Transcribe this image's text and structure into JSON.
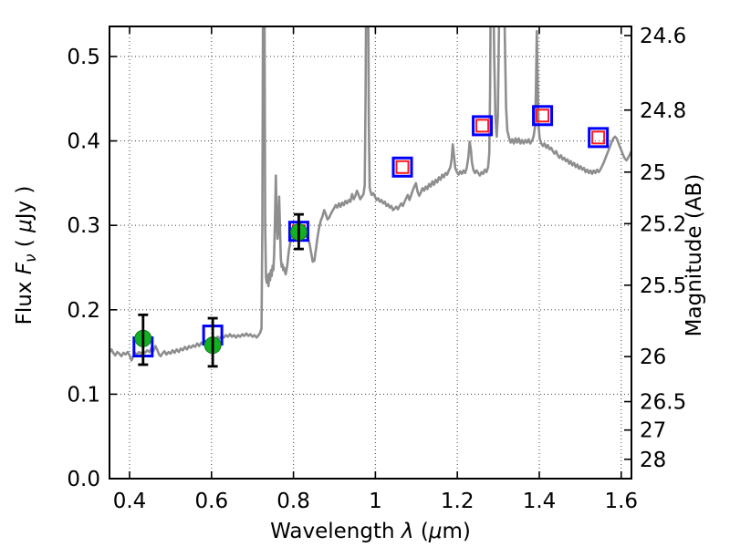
{
  "chart_data": {
    "type": "line+scatter",
    "title": "",
    "xlabel_parts": [
      {
        "t": "Wavelength  ",
        "i": false
      },
      {
        "t": "λ",
        "i": true
      },
      {
        "t": " (",
        "i": false
      },
      {
        "t": "μ",
        "i": true
      },
      {
        "t": "m)",
        "i": false
      }
    ],
    "ylabel_left_parts": [
      {
        "t": "Flux  ",
        "i": false
      },
      {
        "t": "F",
        "i": true
      },
      {
        "t": "ν",
        "i": true,
        "sub": true
      },
      {
        "t": "  ( ",
        "i": false
      },
      {
        "t": "μ",
        "i": true
      },
      {
        "t": "Jy )",
        "i": false
      }
    ],
    "ylabel_right_parts": [
      {
        "t": "Magnitude (AB)",
        "i": false
      }
    ],
    "axes": {
      "x": {
        "min": 0.351,
        "max": 1.625,
        "ticks": [
          0.4,
          0.6,
          0.8,
          1.0,
          1.2,
          1.4,
          1.6
        ],
        "tick_labels": [
          "0.4",
          "0.6",
          "0.8",
          "1",
          "1.2",
          "1.4",
          "1.6"
        ]
      },
      "y": {
        "min": 0.0,
        "max": 0.5356,
        "ticks": [
          0.0,
          0.1,
          0.2,
          0.3,
          0.4,
          0.5
        ],
        "tick_labels": [
          "0.0",
          "0.1",
          "0.2",
          "0.3",
          "0.4",
          "0.5"
        ]
      },
      "right": {
        "tick_values": [
          24.6,
          24.8,
          25.0,
          25.2,
          25.5,
          26.0,
          26.5,
          27.0,
          28.0
        ],
        "tick_labels": [
          "24.6",
          "24.8",
          "25",
          "25.2",
          "25.5",
          "26",
          "26.5",
          "27",
          "28"
        ],
        "ab_zeropoint": 23.9
      },
      "grid": {
        "style": "dotted",
        "on_x_ticks": true,
        "on_y_ticks": true
      }
    },
    "colors": {
      "spectrum": "#8e8e8e",
      "observed_marker": "#14b024",
      "observed_marker_edge": "#0a7d14",
      "model_square": "#0000ff",
      "model_inner_square": "#ff1a1a",
      "error_bar": "#000000",
      "grid": "#555555",
      "frame": "#000000"
    },
    "observed_photometry": [
      {
        "wavelength": 0.433,
        "flux": 0.166,
        "err_plus": 0.028,
        "err_minus": 0.031
      },
      {
        "wavelength": 0.603,
        "flux": 0.158,
        "err_plus": 0.032,
        "err_minus": 0.025
      },
      {
        "wavelength": 0.813,
        "flux": 0.292,
        "err_plus": 0.021,
        "err_minus": 0.02
      }
    ],
    "model_photometry": [
      {
        "wavelength": 0.433,
        "flux": 0.156,
        "red_inner": false
      },
      {
        "wavelength": 0.603,
        "flux": 0.17,
        "red_inner": false
      },
      {
        "wavelength": 0.813,
        "flux": 0.293,
        "red_inner": true
      },
      {
        "wavelength": 1.066,
        "flux": 0.369,
        "red_inner": true
      },
      {
        "wavelength": 1.261,
        "flux": 0.418,
        "red_inner": true
      },
      {
        "wavelength": 1.408,
        "flux": 0.43,
        "red_inner": true
      },
      {
        "wavelength": 1.544,
        "flux": 0.404,
        "red_inner": true
      }
    ],
    "spectrum": [
      [
        0.351,
        0.15
      ],
      [
        0.356,
        0.153
      ],
      [
        0.36,
        0.149
      ],
      [
        0.365,
        0.146
      ],
      [
        0.37,
        0.15
      ],
      [
        0.375,
        0.148
      ],
      [
        0.38,
        0.145
      ],
      [
        0.385,
        0.149
      ],
      [
        0.39,
        0.147
      ],
      [
        0.395,
        0.15
      ],
      [
        0.4,
        0.146
      ],
      [
        0.405,
        0.14
      ],
      [
        0.409,
        0.145
      ],
      [
        0.413,
        0.149
      ],
      [
        0.418,
        0.147
      ],
      [
        0.423,
        0.15
      ],
      [
        0.428,
        0.148
      ],
      [
        0.433,
        0.151
      ],
      [
        0.438,
        0.149
      ],
      [
        0.443,
        0.152
      ],
      [
        0.448,
        0.15
      ],
      [
        0.453,
        0.154
      ],
      [
        0.458,
        0.151
      ],
      [
        0.463,
        0.157
      ],
      [
        0.468,
        0.152
      ],
      [
        0.472,
        0.147
      ],
      [
        0.476,
        0.145
      ],
      [
        0.48,
        0.148
      ],
      [
        0.485,
        0.151
      ],
      [
        0.49,
        0.147
      ],
      [
        0.495,
        0.15
      ],
      [
        0.5,
        0.148
      ],
      [
        0.505,
        0.152
      ],
      [
        0.51,
        0.149
      ],
      [
        0.515,
        0.153
      ],
      [
        0.52,
        0.15
      ],
      [
        0.525,
        0.154
      ],
      [
        0.53,
        0.152
      ],
      [
        0.535,
        0.156
      ],
      [
        0.54,
        0.153
      ],
      [
        0.545,
        0.157
      ],
      [
        0.55,
        0.155
      ],
      [
        0.555,
        0.158
      ],
      [
        0.56,
        0.156
      ],
      [
        0.565,
        0.16
      ],
      [
        0.57,
        0.157
      ],
      [
        0.575,
        0.161
      ],
      [
        0.58,
        0.159
      ],
      [
        0.585,
        0.163
      ],
      [
        0.59,
        0.16
      ],
      [
        0.595,
        0.164
      ],
      [
        0.6,
        0.162
      ],
      [
        0.605,
        0.166
      ],
      [
        0.61,
        0.164
      ],
      [
        0.615,
        0.168
      ],
      [
        0.62,
        0.166
      ],
      [
        0.625,
        0.169
      ],
      [
        0.63,
        0.167
      ],
      [
        0.635,
        0.17
      ],
      [
        0.64,
        0.168
      ],
      [
        0.645,
        0.171
      ],
      [
        0.65,
        0.168
      ],
      [
        0.655,
        0.17
      ],
      [
        0.66,
        0.167
      ],
      [
        0.665,
        0.17
      ],
      [
        0.67,
        0.168
      ],
      [
        0.675,
        0.171
      ],
      [
        0.68,
        0.169
      ],
      [
        0.685,
        0.172
      ],
      [
        0.69,
        0.169
      ],
      [
        0.695,
        0.171
      ],
      [
        0.7,
        0.168
      ],
      [
        0.705,
        0.17
      ],
      [
        0.71,
        0.167
      ],
      [
        0.715,
        0.17
      ],
      [
        0.719,
        0.173
      ],
      [
        0.722,
        0.178
      ],
      [
        0.724,
        0.3
      ],
      [
        0.726,
        0.62
      ],
      [
        0.729,
        0.62
      ],
      [
        0.731,
        0.3
      ],
      [
        0.733,
        0.238
      ],
      [
        0.735,
        0.232
      ],
      [
        0.737,
        0.241
      ],
      [
        0.739,
        0.228
      ],
      [
        0.741,
        0.243
      ],
      [
        0.743,
        0.235
      ],
      [
        0.745,
        0.247
      ],
      [
        0.747,
        0.24
      ],
      [
        0.749,
        0.252
      ],
      [
        0.751,
        0.247
      ],
      [
        0.753,
        0.268
      ],
      [
        0.755,
        0.31
      ],
      [
        0.757,
        0.359
      ],
      [
        0.759,
        0.308
      ],
      [
        0.761,
        0.284
      ],
      [
        0.763,
        0.296
      ],
      [
        0.765,
        0.334
      ],
      [
        0.767,
        0.3
      ],
      [
        0.769,
        0.262
      ],
      [
        0.771,
        0.251
      ],
      [
        0.773,
        0.254
      ],
      [
        0.775,
        0.247
      ],
      [
        0.777,
        0.25
      ],
      [
        0.779,
        0.245
      ],
      [
        0.781,
        0.242
      ],
      [
        0.783,
        0.247
      ],
      [
        0.785,
        0.253
      ],
      [
        0.787,
        0.263
      ],
      [
        0.789,
        0.271
      ],
      [
        0.792,
        0.279
      ],
      [
        0.795,
        0.285
      ],
      [
        0.799,
        0.289
      ],
      [
        0.803,
        0.292
      ],
      [
        0.807,
        0.29
      ],
      [
        0.811,
        0.293
      ],
      [
        0.815,
        0.291
      ],
      [
        0.819,
        0.293
      ],
      [
        0.823,
        0.29
      ],
      [
        0.827,
        0.288
      ],
      [
        0.831,
        0.287
      ],
      [
        0.835,
        0.285
      ],
      [
        0.839,
        0.279
      ],
      [
        0.843,
        0.268
      ],
      [
        0.847,
        0.257
      ],
      [
        0.851,
        0.258
      ],
      [
        0.855,
        0.272
      ],
      [
        0.859,
        0.287
      ],
      [
        0.863,
        0.298
      ],
      [
        0.867,
        0.306
      ],
      [
        0.871,
        0.311
      ],
      [
        0.875,
        0.318
      ],
      [
        0.879,
        0.313
      ],
      [
        0.883,
        0.307
      ],
      [
        0.887,
        0.309
      ],
      [
        0.891,
        0.313
      ],
      [
        0.895,
        0.317
      ],
      [
        0.899,
        0.32
      ],
      [
        0.903,
        0.324
      ],
      [
        0.907,
        0.321
      ],
      [
        0.911,
        0.326
      ],
      [
        0.915,
        0.322
      ],
      [
        0.919,
        0.327
      ],
      [
        0.923,
        0.324
      ],
      [
        0.927,
        0.329
      ],
      [
        0.931,
        0.326
      ],
      [
        0.935,
        0.33
      ],
      [
        0.939,
        0.328
      ],
      [
        0.943,
        0.337
      ],
      [
        0.947,
        0.331
      ],
      [
        0.951,
        0.335
      ],
      [
        0.955,
        0.341
      ],
      [
        0.959,
        0.336
      ],
      [
        0.963,
        0.331
      ],
      [
        0.967,
        0.334
      ],
      [
        0.971,
        0.337
      ],
      [
        0.974,
        0.348
      ],
      [
        0.976,
        0.45
      ],
      [
        0.978,
        0.62
      ],
      [
        0.982,
        0.62
      ],
      [
        0.984,
        0.42
      ],
      [
        0.986,
        0.345
      ],
      [
        0.988,
        0.34
      ],
      [
        0.991,
        0.336
      ],
      [
        0.995,
        0.338
      ],
      [
        0.999,
        0.334
      ],
      [
        1.003,
        0.33
      ],
      [
        1.007,
        0.332
      ],
      [
        1.011,
        0.328
      ],
      [
        1.015,
        0.33
      ],
      [
        1.019,
        0.326
      ],
      [
        1.023,
        0.328
      ],
      [
        1.027,
        0.323
      ],
      [
        1.031,
        0.325
      ],
      [
        1.035,
        0.321
      ],
      [
        1.039,
        0.323
      ],
      [
        1.043,
        0.318
      ],
      [
        1.047,
        0.32
      ],
      [
        1.051,
        0.322
      ],
      [
        1.055,
        0.319
      ],
      [
        1.059,
        0.323
      ],
      [
        1.063,
        0.326
      ],
      [
        1.067,
        0.323
      ],
      [
        1.071,
        0.328
      ],
      [
        1.075,
        0.332
      ],
      [
        1.079,
        0.336
      ],
      [
        1.083,
        0.33
      ],
      [
        1.087,
        0.335
      ],
      [
        1.091,
        0.341
      ],
      [
        1.095,
        0.346
      ],
      [
        1.099,
        0.35
      ],
      [
        1.103,
        0.34
      ],
      [
        1.107,
        0.335
      ],
      [
        1.111,
        0.339
      ],
      [
        1.115,
        0.344
      ],
      [
        1.119,
        0.341
      ],
      [
        1.123,
        0.346
      ],
      [
        1.127,
        0.343
      ],
      [
        1.131,
        0.349
      ],
      [
        1.135,
        0.346
      ],
      [
        1.139,
        0.352
      ],
      [
        1.143,
        0.348
      ],
      [
        1.147,
        0.354
      ],
      [
        1.151,
        0.351
      ],
      [
        1.155,
        0.357
      ],
      [
        1.159,
        0.354
      ],
      [
        1.163,
        0.36
      ],
      [
        1.167,
        0.357
      ],
      [
        1.171,
        0.362
      ],
      [
        1.175,
        0.36
      ],
      [
        1.179,
        0.365
      ],
      [
        1.183,
        0.369
      ],
      [
        1.186,
        0.378
      ],
      [
        1.189,
        0.396
      ],
      [
        1.192,
        0.382
      ],
      [
        1.195,
        0.368
      ],
      [
        1.199,
        0.363
      ],
      [
        1.203,
        0.36
      ],
      [
        1.207,
        0.364
      ],
      [
        1.211,
        0.361
      ],
      [
        1.215,
        0.365
      ],
      [
        1.219,
        0.362
      ],
      [
        1.223,
        0.368
      ],
      [
        1.227,
        0.381
      ],
      [
        1.23,
        0.399
      ],
      [
        1.233,
        0.39
      ],
      [
        1.236,
        0.374
      ],
      [
        1.239,
        0.366
      ],
      [
        1.243,
        0.362
      ],
      [
        1.247,
        0.365
      ],
      [
        1.251,
        0.362
      ],
      [
        1.255,
        0.359
      ],
      [
        1.259,
        0.363
      ],
      [
        1.263,
        0.361
      ],
      [
        1.267,
        0.366
      ],
      [
        1.271,
        0.363
      ],
      [
        1.275,
        0.369
      ],
      [
        1.278,
        0.385
      ],
      [
        1.28,
        0.46
      ],
      [
        1.282,
        0.62
      ],
      [
        1.287,
        0.62
      ],
      [
        1.29,
        0.5
      ],
      [
        1.293,
        0.43
      ],
      [
        1.296,
        0.405
      ],
      [
        1.299,
        0.43
      ],
      [
        1.302,
        0.55
      ],
      [
        1.305,
        0.62
      ],
      [
        1.313,
        0.62
      ],
      [
        1.316,
        0.52
      ],
      [
        1.319,
        0.44
      ],
      [
        1.322,
        0.412
      ],
      [
        1.326,
        0.404
      ],
      [
        1.33,
        0.398
      ],
      [
        1.334,
        0.402
      ],
      [
        1.338,
        0.397
      ],
      [
        1.342,
        0.403
      ],
      [
        1.346,
        0.398
      ],
      [
        1.35,
        0.403
      ],
      [
        1.354,
        0.397
      ],
      [
        1.358,
        0.401
      ],
      [
        1.362,
        0.397
      ],
      [
        1.366,
        0.401
      ],
      [
        1.37,
        0.398
      ],
      [
        1.374,
        0.402
      ],
      [
        1.378,
        0.397
      ],
      [
        1.382,
        0.4
      ],
      [
        1.386,
        0.405
      ],
      [
        1.39,
        0.418
      ],
      [
        1.392,
        0.465
      ],
      [
        1.394,
        0.53
      ],
      [
        1.396,
        0.47
      ],
      [
        1.398,
        0.42
      ],
      [
        1.401,
        0.403
      ],
      [
        1.405,
        0.397
      ],
      [
        1.409,
        0.394
      ],
      [
        1.413,
        0.397
      ],
      [
        1.417,
        0.392
      ],
      [
        1.421,
        0.395
      ],
      [
        1.425,
        0.39
      ],
      [
        1.429,
        0.392
      ],
      [
        1.433,
        0.388
      ],
      [
        1.437,
        0.385
      ],
      [
        1.441,
        0.388
      ],
      [
        1.445,
        0.383
      ],
      [
        1.449,
        0.38
      ],
      [
        1.453,
        0.383
      ],
      [
        1.457,
        0.378
      ],
      [
        1.461,
        0.38
      ],
      [
        1.465,
        0.376
      ],
      [
        1.469,
        0.378
      ],
      [
        1.473,
        0.373
      ],
      [
        1.477,
        0.376
      ],
      [
        1.481,
        0.371
      ],
      [
        1.485,
        0.374
      ],
      [
        1.489,
        0.369
      ],
      [
        1.493,
        0.372
      ],
      [
        1.497,
        0.367
      ],
      [
        1.501,
        0.37
      ],
      [
        1.505,
        0.366
      ],
      [
        1.509,
        0.368
      ],
      [
        1.513,
        0.363
      ],
      [
        1.517,
        0.366
      ],
      [
        1.521,
        0.362
      ],
      [
        1.525,
        0.365
      ],
      [
        1.529,
        0.361
      ],
      [
        1.533,
        0.365
      ],
      [
        1.537,
        0.362
      ],
      [
        1.541,
        0.366
      ],
      [
        1.545,
        0.363
      ],
      [
        1.549,
        0.366
      ],
      [
        1.553,
        0.37
      ],
      [
        1.557,
        0.374
      ],
      [
        1.561,
        0.379
      ],
      [
        1.565,
        0.384
      ],
      [
        1.569,
        0.389
      ],
      [
        1.573,
        0.394
      ],
      [
        1.577,
        0.399
      ],
      [
        1.581,
        0.403
      ],
      [
        1.585,
        0.405
      ],
      [
        1.589,
        0.403
      ],
      [
        1.593,
        0.398
      ],
      [
        1.597,
        0.393
      ],
      [
        1.601,
        0.388
      ],
      [
        1.605,
        0.383
      ],
      [
        1.609,
        0.379
      ],
      [
        1.613,
        0.377
      ],
      [
        1.617,
        0.38
      ],
      [
        1.621,
        0.384
      ],
      [
        1.625,
        0.388
      ]
    ]
  }
}
